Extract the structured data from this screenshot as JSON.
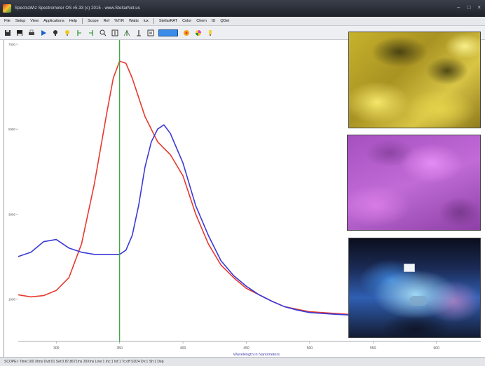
{
  "window": {
    "title": "SpectraWiz Spectrometer OS v5.33 (c) 2015 - www.StellarNet.us",
    "controls": [
      "–",
      "□",
      "×"
    ]
  },
  "menubar": {
    "items": [
      "File",
      "Setup",
      "View",
      "Applications",
      "Help",
      "Scope",
      "Ref",
      "%T/R",
      "Watts",
      "lux",
      "StellarRAT",
      "Color",
      "Chem",
      "ID",
      "QDet"
    ]
  },
  "toolbar": {
    "buttons": [
      "save-icon",
      "disk-icon",
      "print-icon",
      "play-icon",
      "lightbulb-icon",
      "lightbulb-yellow-icon",
      "marker-left-icon",
      "marker-right-icon",
      "zoom-icon",
      "zoom-out-icon",
      "peak-icon",
      "peak-up-icon",
      "copy-icon",
      "scope-mode-icon",
      "palette-icon",
      "color-wheel-icon",
      "bulb-small-icon"
    ]
  },
  "chart_data": {
    "type": "line",
    "xlabel": "Wavelength in Nanometers",
    "ylabel": "",
    "x_ticks": [
      "300",
      "350",
      "400",
      "450",
      "500",
      "550",
      "600"
    ],
    "y_ticks": [
      "1000",
      "3000",
      "5000",
      "7000"
    ],
    "xlim": [
      270,
      635
    ],
    "ylim": [
      0,
      7000
    ],
    "cursor_x": 350,
    "series": [
      {
        "name": "",
        "color": "#e8392f",
        "x": [
          270,
          280,
          290,
          300,
          310,
          320,
          330,
          340,
          345,
          350,
          355,
          360,
          370,
          380,
          385,
          390,
          400,
          410,
          420,
          430,
          440,
          450,
          460,
          470,
          480,
          490,
          500,
          510,
          520,
          540,
          560,
          580,
          600,
          620,
          635
        ],
        "y": [
          1100,
          1050,
          1080,
          1200,
          1500,
          2300,
          3700,
          5400,
          6200,
          6600,
          6550,
          6200,
          5300,
          4700,
          4550,
          4400,
          3900,
          3000,
          2300,
          1800,
          1500,
          1250,
          1100,
          950,
          820,
          760,
          700,
          680,
          660,
          620,
          600,
          580,
          560,
          540,
          520
        ]
      },
      {
        "name": "",
        "color": "#3a3ad6",
        "x": [
          270,
          280,
          290,
          300,
          310,
          320,
          330,
          340,
          345,
          350,
          355,
          360,
          365,
          370,
          375,
          380,
          385,
          390,
          400,
          410,
          420,
          430,
          440,
          450,
          460,
          470,
          480,
          490,
          500,
          520,
          540,
          560,
          580,
          600,
          620,
          635
        ],
        "y": [
          2000,
          2100,
          2350,
          2400,
          2200,
          2100,
          2050,
          2050,
          2050,
          2050,
          2150,
          2500,
          3200,
          4100,
          4700,
          5000,
          5100,
          4900,
          4200,
          3200,
          2500,
          1900,
          1550,
          1300,
          1100,
          950,
          820,
          740,
          680,
          640,
          610,
          580,
          560,
          540,
          520,
          510
        ]
      }
    ]
  },
  "statusbar": {
    "text": "SCOPE>  Time:100 Xtms  Dvd:01  Sel:0.87,8671ms  20Xms  Line:1  Inc:1  Int:1  Tc:off  SD24  Dv:1  Sh:1  Dep"
  }
}
